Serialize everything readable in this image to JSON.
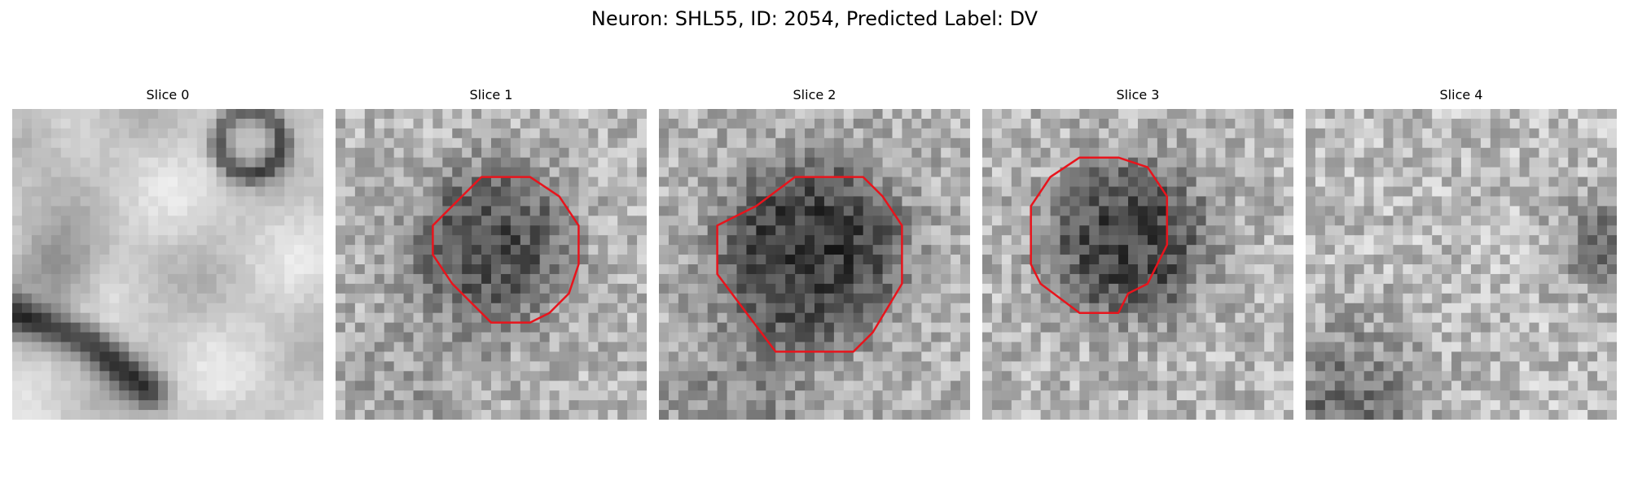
{
  "figure": {
    "title": "Neuron: SHL55, ID: 2054, Predicted Label: DV"
  },
  "panels": [
    {
      "title": "Slice 0",
      "has_contour": false
    },
    {
      "title": "Slice 1",
      "has_contour": true
    },
    {
      "title": "Slice 2",
      "has_contour": true
    },
    {
      "title": "Slice 3",
      "has_contour": true
    },
    {
      "title": "Slice 4",
      "has_contour": false
    }
  ],
  "colors": {
    "contour": "#e8141c"
  }
}
